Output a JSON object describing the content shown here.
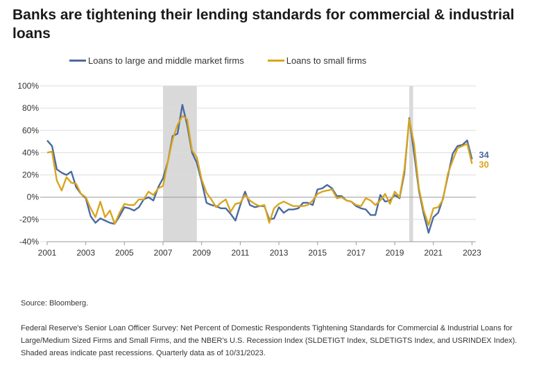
{
  "title": "Banks are tightening their lending standards for commercial & industrial loans",
  "source": "Source: Bloomberg.",
  "note": "Federal Reserve's Senior Loan Officer Survey: Net Percent of Domestic Respondents Tightening Standards for Commercial & Industrial Loans for Large/Medium Sized Firms and Small Firms, and the NBER's U.S. Recession Index (SLDETIGT Index, SLDETIGTS Index, and USRINDEX Index). Shaded areas indicate past recessions. Quarterly data as of 10/31/2023.",
  "chart_data": {
    "type": "line",
    "title": "Banks are tightening their lending standards for commercial & industrial loans",
    "xlabel": "",
    "ylabel": "",
    "xlim": [
      2001,
      2023.2
    ],
    "ylim": [
      -40,
      100
    ],
    "x_ticks": [
      2001,
      2003,
      2005,
      2007,
      2009,
      2011,
      2013,
      2015,
      2017,
      2019,
      2021,
      2023
    ],
    "x_tick_labels": [
      "2001",
      "2003",
      "2005",
      "2007",
      "2009",
      "2011",
      "2013",
      "2015",
      "2017",
      "2019",
      "2021",
      "2023"
    ],
    "y_ticks": [
      -40,
      -20,
      0,
      20,
      40,
      60,
      80,
      100
    ],
    "y_tick_labels": [
      "-40%",
      "-20%",
      "0%",
      "20%",
      "40%",
      "60%",
      "80%",
      "100%"
    ],
    "grid": "horizontal",
    "legend": "top",
    "recessions": [
      [
        2007,
        2008.75
      ],
      [
        2019.75,
        2019.95
      ]
    ],
    "series": [
      {
        "name": "Loans to large and middle market firms",
        "color": "#4a6aa0",
        "end_label": "34",
        "points": [
          [
            2001.0,
            51
          ],
          [
            2001.25,
            46
          ],
          [
            2001.5,
            25
          ],
          [
            2001.75,
            22
          ],
          [
            2002.0,
            20
          ],
          [
            2002.25,
            23
          ],
          [
            2002.5,
            9
          ],
          [
            2002.75,
            3
          ],
          [
            2003.0,
            -1
          ],
          [
            2003.25,
            -17
          ],
          [
            2003.5,
            -23
          ],
          [
            2003.75,
            -19
          ],
          [
            2004.0,
            -21
          ],
          [
            2004.25,
            -23
          ],
          [
            2004.5,
            -24
          ],
          [
            2004.75,
            -17
          ],
          [
            2005.0,
            -9
          ],
          [
            2005.25,
            -10
          ],
          [
            2005.5,
            -12
          ],
          [
            2005.75,
            -9
          ],
          [
            2006.0,
            -2
          ],
          [
            2006.25,
            0
          ],
          [
            2006.5,
            -3
          ],
          [
            2006.75,
            9
          ],
          [
            2007.0,
            17
          ],
          [
            2007.25,
            32
          ],
          [
            2007.5,
            55
          ],
          [
            2007.75,
            57
          ],
          [
            2008.0,
            83
          ],
          [
            2008.25,
            65
          ],
          [
            2008.5,
            40
          ],
          [
            2008.75,
            31
          ],
          [
            2009.0,
            14
          ],
          [
            2009.25,
            -5
          ],
          [
            2009.5,
            -7
          ],
          [
            2009.75,
            -8
          ],
          [
            2010.0,
            -10
          ],
          [
            2010.25,
            -10
          ],
          [
            2010.5,
            -15
          ],
          [
            2010.75,
            -21
          ],
          [
            2011.0,
            -7
          ],
          [
            2011.25,
            5
          ],
          [
            2011.5,
            -7
          ],
          [
            2011.75,
            -9
          ],
          [
            2012.0,
            -8
          ],
          [
            2012.25,
            -8
          ],
          [
            2012.5,
            -20
          ],
          [
            2012.75,
            -19
          ],
          [
            2013.0,
            -9
          ],
          [
            2013.25,
            -14
          ],
          [
            2013.5,
            -11
          ],
          [
            2013.75,
            -11
          ],
          [
            2014.0,
            -10
          ],
          [
            2014.25,
            -5
          ],
          [
            2014.5,
            -5
          ],
          [
            2014.75,
            -7
          ],
          [
            2015.0,
            7
          ],
          [
            2015.25,
            8
          ],
          [
            2015.5,
            11
          ],
          [
            2015.75,
            8
          ],
          [
            2016.0,
            1
          ],
          [
            2016.25,
            1
          ],
          [
            2016.5,
            -3
          ],
          [
            2016.75,
            -4
          ],
          [
            2017.0,
            -8
          ],
          [
            2017.25,
            -10
          ],
          [
            2017.5,
            -11
          ],
          [
            2017.75,
            -16
          ],
          [
            2018.0,
            -16
          ],
          [
            2018.25,
            2
          ],
          [
            2018.5,
            -4
          ],
          [
            2018.75,
            -3
          ],
          [
            2019.0,
            2
          ],
          [
            2019.25,
            -1
          ],
          [
            2019.5,
            22
          ],
          [
            2019.75,
            71
          ],
          [
            2020.0,
            40
          ],
          [
            2020.25,
            6
          ],
          [
            2020.5,
            -15
          ],
          [
            2020.75,
            -32
          ],
          [
            2021.0,
            -18
          ],
          [
            2021.25,
            -14
          ],
          [
            2021.5,
            -1
          ],
          [
            2021.75,
            19
          ],
          [
            2022.0,
            39
          ],
          [
            2022.25,
            46
          ],
          [
            2022.5,
            47
          ],
          [
            2022.75,
            51
          ],
          [
            2023.0,
            34
          ]
        ]
      },
      {
        "name": "Loans to small firms",
        "color": "#d8a51e",
        "end_label": "30",
        "points": [
          [
            2001.0,
            40
          ],
          [
            2001.25,
            41
          ],
          [
            2001.5,
            15
          ],
          [
            2001.75,
            6
          ],
          [
            2002.0,
            18
          ],
          [
            2002.25,
            13
          ],
          [
            2002.5,
            12
          ],
          [
            2002.75,
            3
          ],
          [
            2003.0,
            0
          ],
          [
            2003.25,
            -10
          ],
          [
            2003.5,
            -18
          ],
          [
            2003.75,
            -4
          ],
          [
            2004.0,
            -18
          ],
          [
            2004.25,
            -12
          ],
          [
            2004.5,
            -24
          ],
          [
            2004.75,
            -14
          ],
          [
            2005.0,
            -6
          ],
          [
            2005.25,
            -7
          ],
          [
            2005.5,
            -7
          ],
          [
            2005.75,
            -2
          ],
          [
            2006.0,
            -2
          ],
          [
            2006.25,
            5
          ],
          [
            2006.5,
            2
          ],
          [
            2006.75,
            8
          ],
          [
            2007.0,
            10
          ],
          [
            2007.25,
            32
          ],
          [
            2007.5,
            52
          ],
          [
            2007.75,
            65
          ],
          [
            2008.0,
            73
          ],
          [
            2008.25,
            70
          ],
          [
            2008.5,
            42
          ],
          [
            2008.75,
            36
          ],
          [
            2009.0,
            16
          ],
          [
            2009.25,
            4
          ],
          [
            2009.5,
            -2
          ],
          [
            2009.75,
            -9
          ],
          [
            2010.0,
            -5
          ],
          [
            2010.25,
            -2
          ],
          [
            2010.5,
            -13
          ],
          [
            2010.75,
            -6
          ],
          [
            2011.0,
            -5
          ],
          [
            2011.25,
            2
          ],
          [
            2011.5,
            -3
          ],
          [
            2011.75,
            -6
          ],
          [
            2012.0,
            -8
          ],
          [
            2012.25,
            -7
          ],
          [
            2012.5,
            -23
          ],
          [
            2012.75,
            -10
          ],
          [
            2013.0,
            -6
          ],
          [
            2013.25,
            -4
          ],
          [
            2013.5,
            -6
          ],
          [
            2013.75,
            -8
          ],
          [
            2014.0,
            -8
          ],
          [
            2014.25,
            -8
          ],
          [
            2014.5,
            -7
          ],
          [
            2014.75,
            -3
          ],
          [
            2015.0,
            3
          ],
          [
            2015.25,
            5
          ],
          [
            2015.5,
            6
          ],
          [
            2015.75,
            7
          ],
          [
            2016.0,
            -1
          ],
          [
            2016.25,
            0
          ],
          [
            2016.5,
            -3
          ],
          [
            2016.75,
            -4
          ],
          [
            2017.0,
            -7
          ],
          [
            2017.25,
            -8
          ],
          [
            2017.5,
            -1
          ],
          [
            2017.75,
            -3
          ],
          [
            2018.0,
            -7
          ],
          [
            2018.25,
            -3
          ],
          [
            2018.5,
            3
          ],
          [
            2018.75,
            -6
          ],
          [
            2019.0,
            5
          ],
          [
            2019.25,
            0
          ],
          [
            2019.5,
            25
          ],
          [
            2019.75,
            70
          ],
          [
            2020.0,
            48
          ],
          [
            2020.25,
            8
          ],
          [
            2020.5,
            -12
          ],
          [
            2020.75,
            -25
          ],
          [
            2021.0,
            -10
          ],
          [
            2021.25,
            -9
          ],
          [
            2021.5,
            -2
          ],
          [
            2021.75,
            21
          ],
          [
            2022.0,
            33
          ],
          [
            2022.25,
            44
          ],
          [
            2022.5,
            46
          ],
          [
            2022.75,
            48
          ],
          [
            2023.0,
            30
          ]
        ]
      }
    ]
  }
}
